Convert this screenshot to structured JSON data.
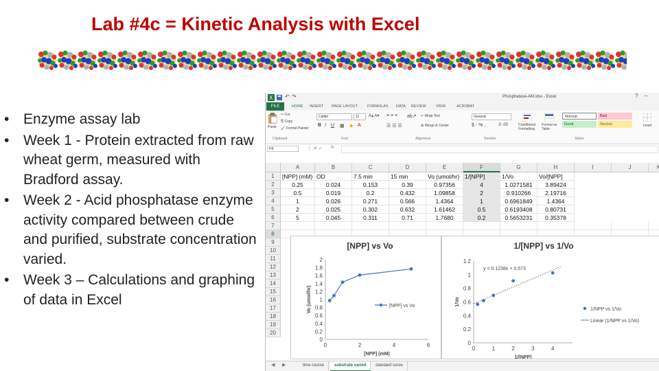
{
  "slide": {
    "title": "Lab #4c = Kinetic Analysis with Excel",
    "bullets": [
      "Enzyme assay lab",
      "Week 1 - Protein extracted from raw wheat germ, measured with Bradford assay.",
      "Week 2 - Acid phosphatase enzyme activity compared between crude and purified, substrate concentration varied.",
      "Week 3 – Calculations and graphing of data in Excel"
    ]
  },
  "excel": {
    "filename": "Phosphatase-AM.xlsx - Excel",
    "ribbon_tabs": [
      "FILE",
      "HOME",
      "INSERT",
      "PAGE LAYOUT",
      "FORMULAS",
      "DATA",
      "REVIEW",
      "VIEW",
      "ACROBAT"
    ],
    "ribbon": {
      "cut": "Cut",
      "copy": "Copy",
      "format_painter": "Format Painter",
      "paste": "Paste",
      "font": "Calibri",
      "size": "11",
      "wrap": "Wrap Text",
      "merge": "Merge & Center",
      "number_format": "General",
      "cond_format": "Conditional Formatting",
      "format_table": "Format as Table",
      "insert": "Insert",
      "groups": {
        "clipboard": "Clipboard",
        "font": "Font",
        "alignment": "Alignment",
        "number": "Number",
        "styles": "Styles"
      },
      "styles": {
        "normal": "Normal",
        "bad": "Bad",
        "good": "Good",
        "neutral": "Neutral"
      }
    },
    "name_box": "F8",
    "fx": "fx",
    "columns": [
      "A",
      "B",
      "C",
      "D",
      "E",
      "F",
      "G",
      "H",
      "I",
      "J",
      "K"
    ],
    "selected_column": "F",
    "rows": [
      "1",
      "2",
      "3",
      "4",
      "5",
      "6",
      "7",
      "8",
      "9",
      "10",
      "11",
      "12",
      "13",
      "14",
      "15",
      "16",
      "17",
      "18",
      "19",
      "20"
    ],
    "selected_row": "8",
    "table": {
      "header": [
        "[NPP] (mM)",
        "OD",
        "7.5 min",
        "15 min",
        "Vo (umol/hr)",
        "1/[NPP]",
        "1/Vo",
        "Vo/[NPP]"
      ],
      "data": [
        [
          "0.25",
          "0.024",
          "0.153",
          "0.39",
          "0.97356",
          "4",
          "1.0271581",
          "3.89424"
        ],
        [
          "0.5",
          "0.019",
          "0.2",
          "0.432",
          "1.09858",
          "2",
          "0.910266",
          "2.19716"
        ],
        [
          "1",
          "0.026",
          "0.271",
          "0.566",
          "1.4364",
          "1",
          "0.6961849",
          "1.4364"
        ],
        [
          "2",
          "0.025",
          "0.302",
          "0.632",
          "1.61462",
          "0.5",
          "0.6193408",
          "0.80731"
        ],
        [
          "5",
          "0.045",
          "0.311",
          "0.71",
          "1.7680",
          "0.2",
          "0.5653231",
          "0.35378"
        ]
      ]
    },
    "sheet_tabs": [
      "time course",
      "substrate varied",
      "standard curve"
    ],
    "active_sheet": "substrate varied"
  },
  "chart_data": [
    {
      "type": "scatter",
      "title": "[NPP] vs Vo",
      "xlabel": "[NPP] (mM)",
      "ylabel": "Vo (umol/hr)",
      "xlim": [
        0,
        6
      ],
      "ylim": [
        0,
        2
      ],
      "xticks": [
        0,
        2,
        4,
        6
      ],
      "yticks": [
        0,
        0.2,
        0.4,
        0.6,
        0.8,
        1,
        1.2,
        1.4,
        1.6,
        1.8,
        2
      ],
      "legend_position": "center-right",
      "series": [
        {
          "name": "[NPP] vs Vo",
          "color": "#4472c4",
          "x": [
            0.25,
            0.5,
            1,
            2,
            5
          ],
          "y": [
            0.97356,
            1.09858,
            1.4364,
            1.61462,
            1.768
          ]
        }
      ]
    },
    {
      "type": "scatter",
      "title": "1/[NPP] vs 1/Vo",
      "xlabel": "1/[NPP]",
      "ylabel": "1/Vo",
      "xlim": [
        0,
        5
      ],
      "ylim": [
        0,
        1.2
      ],
      "xticks": [
        0,
        1,
        2,
        3,
        4
      ],
      "yticks": [
        0,
        0.2,
        0.4,
        0.6,
        0.8,
        1,
        1.2
      ],
      "annotation": "y = 0.1238x + 0.573",
      "legend_position": "right",
      "series": [
        {
          "name": "1/NPP vs 1/Vo",
          "color": "#4472c4",
          "x": [
            0.2,
            0.5,
            1,
            2,
            4
          ],
          "y": [
            0.5653231,
            0.6193408,
            0.6961849,
            0.910266,
            1.0271581
          ]
        },
        {
          "name": "Linear (1/NPP vs 1/Vo)",
          "color": "#666666",
          "type": "trendline",
          "slope": 0.1238,
          "intercept": 0.573
        }
      ]
    }
  ]
}
